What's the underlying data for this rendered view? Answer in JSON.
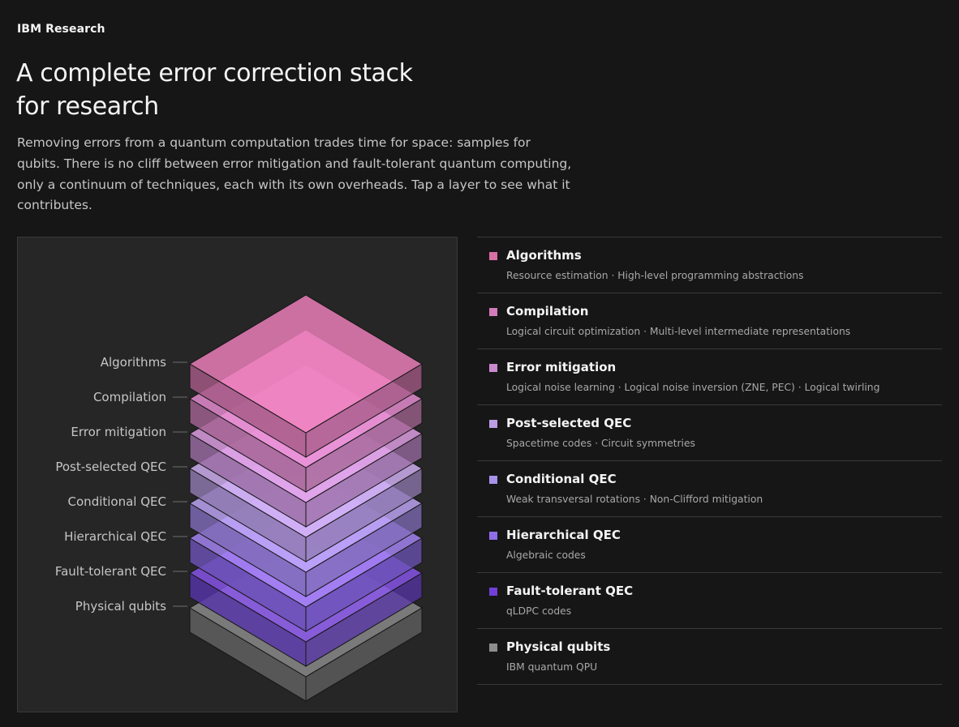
{
  "brand": "IBM Research",
  "title": {
    "line1": "A complete error correction stack",
    "line2": "for research"
  },
  "description": "Removing errors from a quantum computation trades time for space: samples for qubits. There is no cliff between error mitigation and fault-tolerant quantum computing, only a continuum of techniques, each with its own overheads. Tap a layer to see what it contributes.",
  "layers": [
    {
      "name": "Algorithms",
      "detail": "Resource estimation · High-level programming abstractions",
      "color": "#d96fa6",
      "top": "#f081bd",
      "side": "#a65a86"
    },
    {
      "name": "Compilation",
      "detail": "Logical circuit optimization · Multi-level intermediate representations",
      "color": "#d37bbb",
      "top": "#eb8fd4",
      "side": "#a36392"
    },
    {
      "name": "Error mitigation",
      "detail": "Logical noise learning · Logical noise inversion (ZNE, PEC) · Logical twirling",
      "color": "#c98ad0",
      "top": "#e3a1e8",
      "side": "#9a6ca3"
    },
    {
      "name": "Post-selected QEC",
      "detail": "Spacetime codes · Circuit symmetries",
      "color": "#be9ce4",
      "top": "#d4b2f7",
      "side": "#8f79b0"
    },
    {
      "name": "Conditional QEC",
      "detail": "Weak transversal rotations · Non-Clifford mitigation",
      "color": "#a891ea",
      "top": "#c0a7f9",
      "side": "#7f6bb8"
    },
    {
      "name": "Hierarchical QEC",
      "detail": "Algebraic codes",
      "color": "#8f6ee8",
      "top": "#a886f8",
      "side": "#6b52b4"
    },
    {
      "name": "Fault-tolerant QEC",
      "detail": "qLDPC codes",
      "color": "#7040d8",
      "top": "#8a55ee",
      "side": "#5734a8"
    },
    {
      "name": "Physical qubits",
      "detail": "IBM quantum QPU",
      "color": "#8d8d8d",
      "top": "#7a7a7a",
      "side": "#575757"
    }
  ]
}
